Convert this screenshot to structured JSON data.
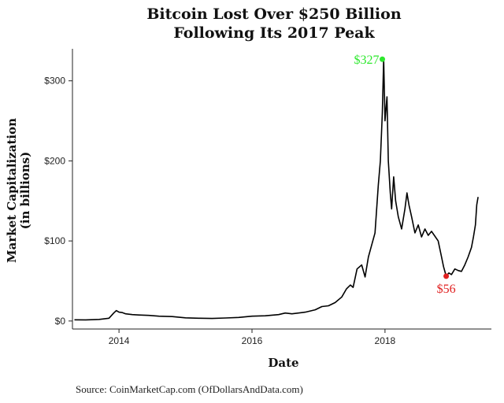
{
  "chart_data": {
    "type": "line",
    "title_line1": "Bitcoin Lost Over $250 Billion",
    "title_line2": "Following Its 2017 Peak",
    "xlabel": "Date",
    "ylabel_line1": "Market Capitalization",
    "ylabel_line2": "(in billions)",
    "source": "Source:  CoinMarketCap.com (OfDollarsAndData.com)",
    "xlim": [
      2013.3,
      2019.6
    ],
    "ylim": [
      -10,
      340
    ],
    "x_ticks": [
      2014,
      2016,
      2018
    ],
    "x_tick_labels": [
      "2014",
      "2016",
      "2018"
    ],
    "y_ticks": [
      0,
      100,
      200,
      300
    ],
    "y_tick_labels": [
      "$0",
      "$100",
      "$200",
      "$300"
    ],
    "grid": false,
    "series": [
      {
        "name": "Market Capitalization",
        "color": "#000000",
        "x": [
          2013.33,
          2013.5,
          2013.7,
          2013.85,
          2013.92,
          2013.96,
          2014.0,
          2014.05,
          2014.1,
          2014.2,
          2014.3,
          2014.45,
          2014.6,
          2014.8,
          2015.0,
          2015.2,
          2015.4,
          2015.6,
          2015.8,
          2016.0,
          2016.2,
          2016.4,
          2016.5,
          2016.6,
          2016.8,
          2016.95,
          2017.05,
          2017.15,
          2017.25,
          2017.35,
          2017.42,
          2017.48,
          2017.52,
          2017.58,
          2017.65,
          2017.7,
          2017.75,
          2017.8,
          2017.85,
          2017.9,
          2017.93,
          2017.96,
          2017.98,
          2018.0,
          2018.03,
          2018.05,
          2018.08,
          2018.1,
          2018.13,
          2018.16,
          2018.2,
          2018.25,
          2018.3,
          2018.33,
          2018.36,
          2018.4,
          2018.45,
          2018.5,
          2018.55,
          2018.6,
          2018.65,
          2018.7,
          2018.75,
          2018.8,
          2018.85,
          2018.88,
          2018.92,
          2018.96,
          2019.0,
          2019.05,
          2019.1,
          2019.15,
          2019.2,
          2019.25,
          2019.3,
          2019.33,
          2019.36,
          2019.38,
          2019.4
        ],
        "values": [
          1.5,
          1.4,
          2,
          3.5,
          10,
          13,
          11,
          10.5,
          9,
          8,
          7.5,
          7,
          6,
          5.5,
          4,
          3.5,
          3.2,
          3.8,
          4.5,
          6,
          6.5,
          8,
          10,
          9,
          11,
          14,
          18,
          19,
          23,
          30,
          40,
          45,
          42,
          65,
          70,
          55,
          80,
          95,
          110,
          170,
          200,
          260,
          327,
          250,
          280,
          200,
          160,
          140,
          180,
          150,
          130,
          115,
          140,
          160,
          145,
          130,
          110,
          120,
          105,
          115,
          107,
          112,
          106,
          100,
          80,
          68,
          56,
          60,
          58,
          65,
          63,
          62,
          70,
          80,
          92,
          105,
          120,
          145,
          155
        ]
      }
    ],
    "annotations": [
      {
        "label": "$327",
        "x": 2017.96,
        "y": 327,
        "color": "#2ee82e"
      },
      {
        "label": "$56",
        "x": 2018.92,
        "y": 56,
        "color": "#e02020"
      }
    ]
  }
}
